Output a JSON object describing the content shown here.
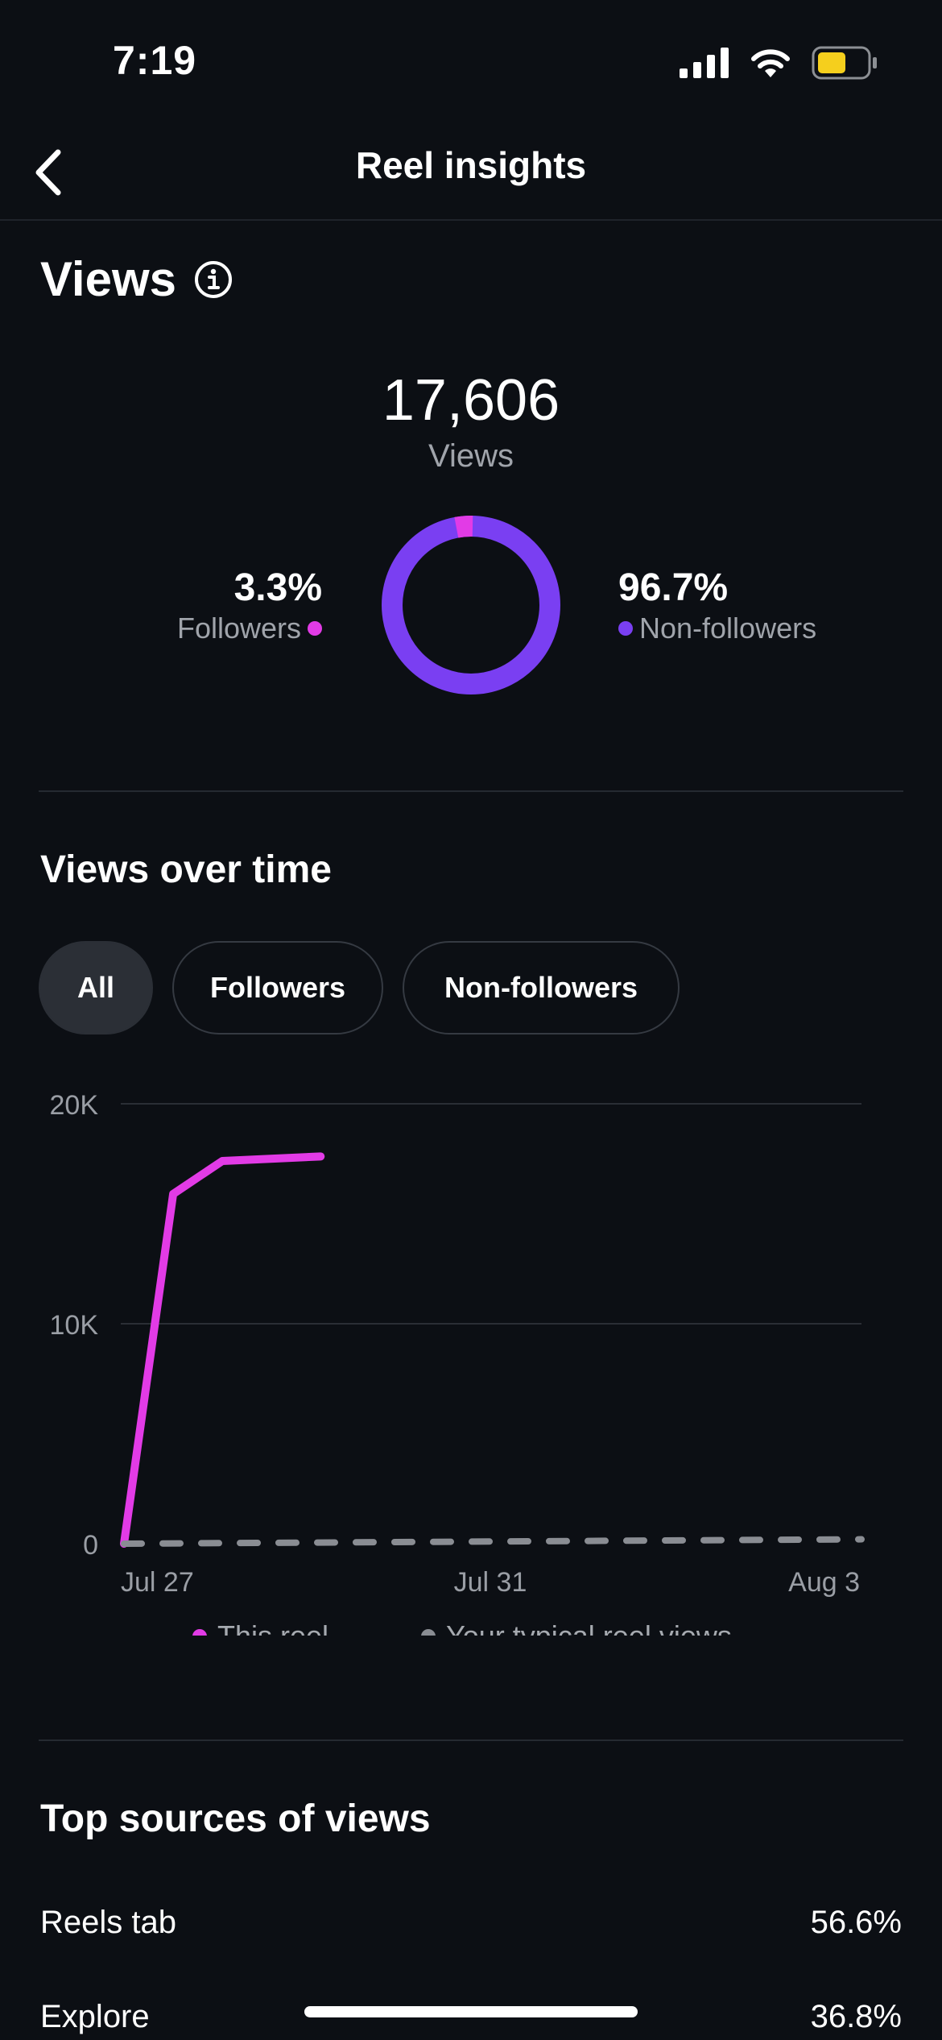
{
  "status_bar": {
    "time": "7:19"
  },
  "nav": {
    "title": "Reel insights",
    "back_icon": "chevron-left-icon"
  },
  "views": {
    "title": "Views",
    "total": "17,606",
    "total_label": "Views",
    "followers_pct": "3.3%",
    "followers_label": "Followers",
    "nonfollowers_pct": "96.7%",
    "nonfollowers_label": "Non-followers",
    "followers_fraction": 0.033,
    "colors": {
      "followers": "#e23be6",
      "nonfollowers": "#7a3ff2"
    }
  },
  "views_over_time": {
    "title": "Views over time",
    "filters": [
      {
        "label": "All",
        "active": true
      },
      {
        "label": "Followers",
        "active": false
      },
      {
        "label": "Non-followers",
        "active": false
      }
    ]
  },
  "chart_data": {
    "type": "line",
    "ylim": [
      0,
      20000
    ],
    "yticks": [
      0,
      10000,
      20000
    ],
    "ytick_labels": [
      "0",
      "10K",
      "20K"
    ],
    "xtick_labels": [
      "Jul 27",
      "Jul 31",
      "Aug 3"
    ],
    "grid": true,
    "legend_position": "bottom",
    "series": [
      {
        "name": "This reel",
        "color": "#e23be6",
        "style": "solid",
        "x": [
          0,
          0.5,
          1.0,
          2.0
        ],
        "values": [
          0,
          15900,
          17400,
          17606
        ]
      },
      {
        "name": "Your typical reel views",
        "color": "#8a8d93",
        "style": "dashed",
        "x": [
          0,
          7.5
        ],
        "values": [
          0,
          200
        ]
      }
    ]
  },
  "sources": {
    "title": "Top sources of views",
    "items": [
      {
        "label": "Reels tab",
        "value": "56.6%"
      },
      {
        "label": "Explore",
        "value": "36.8%"
      }
    ]
  }
}
